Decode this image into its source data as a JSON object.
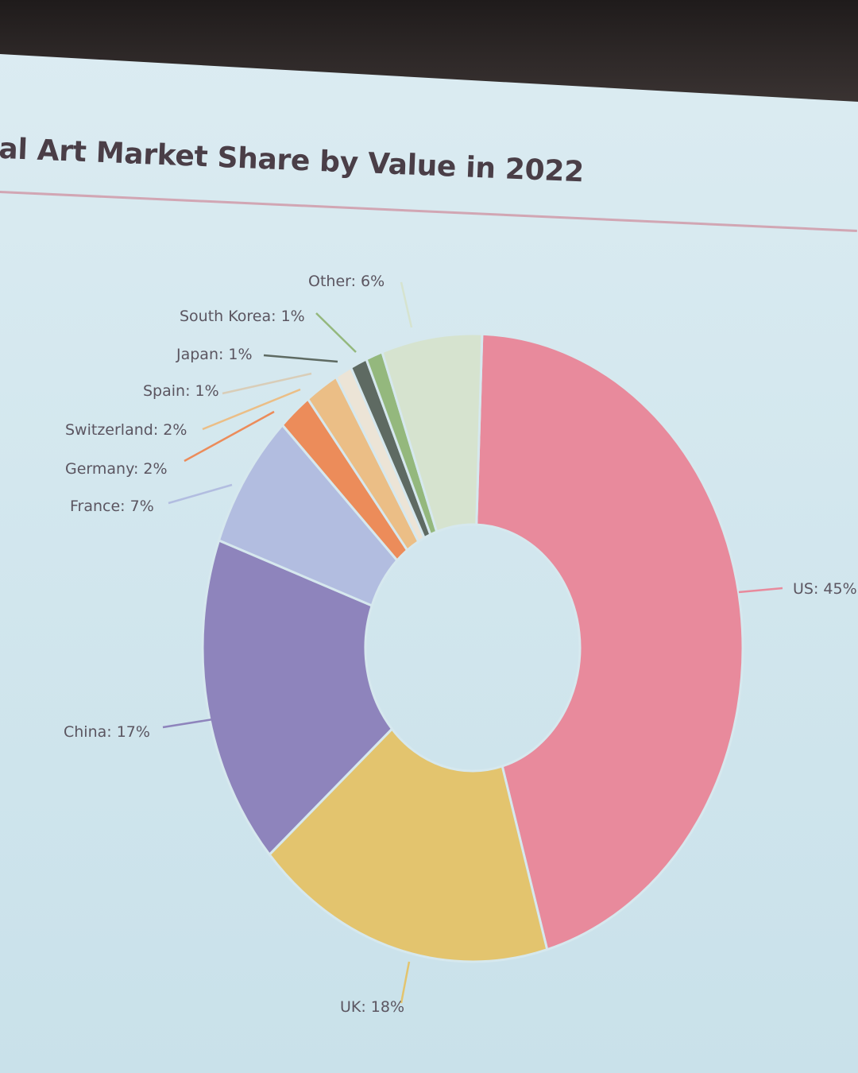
{
  "chart_data": {
    "type": "pie",
    "title": "al Art Market Share by Value in 2022",
    "donut": true,
    "slices": [
      {
        "label": "US: 45%",
        "value": 45,
        "color": "#e88a9c"
      },
      {
        "label": "UK: 18%",
        "value": 18,
        "color": "#e3c46e"
      },
      {
        "label": "China: 17%",
        "value": 17,
        "color": "#8e84bc"
      },
      {
        "label": "France: 7%",
        "value": 7,
        "color": "#b2bde0"
      },
      {
        "label": "Germany: 2%",
        "value": 2,
        "color": "#ec8c5a"
      },
      {
        "label": "Switzerland: 2%",
        "value": 2,
        "color": "#ebbe86"
      },
      {
        "label": "Spain: 1%",
        "value": 1,
        "color": "#ece4d6"
      },
      {
        "label": "Japan: 1%",
        "value": 1,
        "color": "#5e6a62"
      },
      {
        "label": "South Korea: 1%",
        "value": 1,
        "color": "#94b87d"
      },
      {
        "label": "Other: 6%",
        "value": 6,
        "color": "#d6e3cf"
      }
    ]
  }
}
